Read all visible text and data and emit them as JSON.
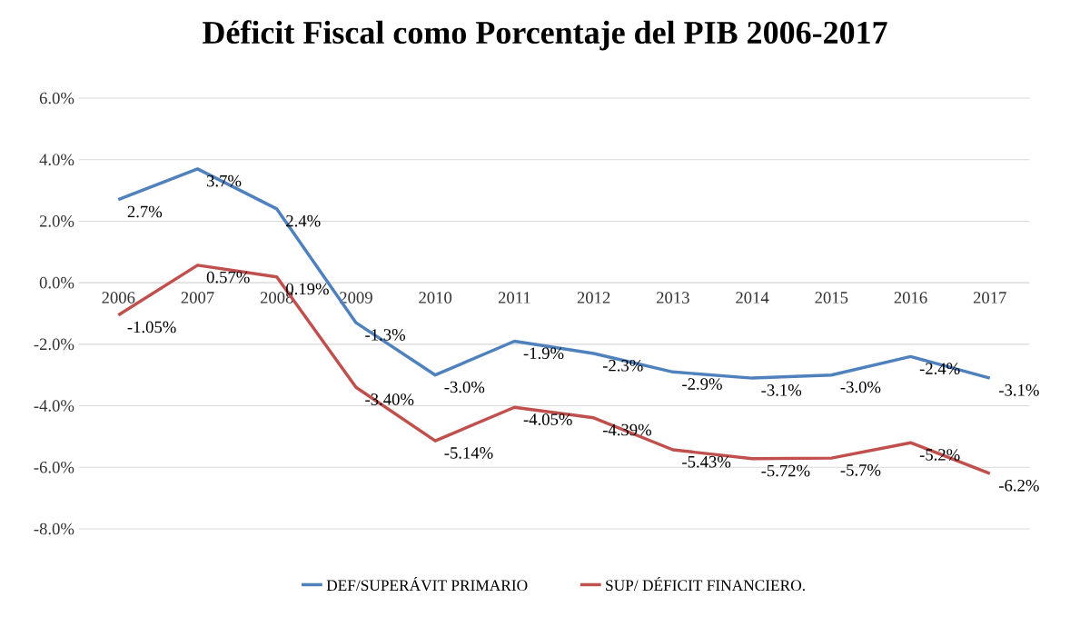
{
  "chart_data": {
    "type": "line",
    "title": "Déficit Fiscal como Porcentaje del PIB 2006-2017",
    "categories": [
      "2006",
      "2007",
      "2008",
      "2009",
      "2010",
      "2011",
      "2012",
      "2013",
      "2014",
      "2015",
      "2016",
      "2017"
    ],
    "series": [
      {
        "name": "DEF/SUPERÁVIT PRIMARIO",
        "color": "#4f81bd",
        "values": [
          2.7,
          3.7,
          2.4,
          -1.3,
          -3.0,
          -1.9,
          -2.3,
          -2.9,
          -3.1,
          -3.0,
          -2.4,
          -3.1
        ],
        "value_labels": [
          "2.7%",
          "3.7%",
          "2.4%",
          "-1.3%",
          "-3.0%",
          "-1.9%",
          "-2.3%",
          "-2.9%",
          "-3.1%",
          "-3.0%",
          "-2.4%",
          "-3.1%"
        ]
      },
      {
        "name": "SUP/ DÉFICIT  FINANCIERO.",
        "color": "#c0504d",
        "values": [
          -1.05,
          0.57,
          0.19,
          -3.4,
          -5.14,
          -4.05,
          -4.39,
          -5.43,
          -5.72,
          -5.7,
          -5.2,
          -6.2
        ],
        "value_labels": [
          "-1.05%",
          "0.57%",
          "0.19%",
          "-3.40%",
          "-5.14%",
          "-4.05%",
          "-4.39%",
          "-5.43%",
          "-5.72%",
          "-5.7%",
          "-5.2%",
          "-6.2%"
        ]
      }
    ],
    "ylim": [
      -8,
      6
    ],
    "yticks": [
      {
        "value": -8,
        "label": "-8.0%"
      },
      {
        "value": -6,
        "label": "-6.0%"
      },
      {
        "value": -4,
        "label": "-4.0%"
      },
      {
        "value": -2,
        "label": "-2.0%"
      },
      {
        "value": 0,
        "label": "0.0%"
      },
      {
        "value": 2,
        "label": "2.0%"
      },
      {
        "value": 4,
        "label": "4.0%"
      },
      {
        "value": 6,
        "label": "6.0%"
      }
    ],
    "grid": "y",
    "legend": "bottom"
  }
}
